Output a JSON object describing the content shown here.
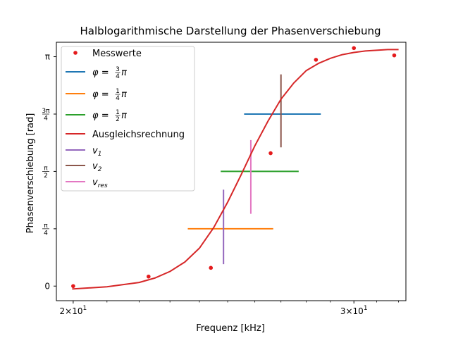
{
  "chart_data": {
    "type": "scatter",
    "title": "Halblogarithmische Darstellung der Phasenverschiebung",
    "xlabel": "Frequenz [kHz]",
    "ylabel": "Phasenverschiebung [rad]",
    "xscale": "log",
    "xlim": [
      19.52,
      32.34
    ],
    "ylim": [
      -0.2,
      3.34
    ],
    "grid": false,
    "legend_position": "upper left",
    "x_ticks": [
      {
        "value": 20,
        "base": "2×10",
        "exp": "1"
      },
      {
        "value": 30,
        "base": "3×10",
        "exp": "1"
      }
    ],
    "y_ticks": [
      {
        "value": 0,
        "text": "0"
      },
      {
        "value": 0.785,
        "num": "π",
        "den": "4"
      },
      {
        "value": 1.571,
        "num": "π",
        "den": "2"
      },
      {
        "value": 2.356,
        "num": "3π",
        "den": "4"
      },
      {
        "value": 3.142,
        "text": "π"
      }
    ],
    "series": [
      {
        "name": "Messwerte",
        "kind": "points",
        "color": "#e41a1c",
        "x": [
          20.0,
          22.3,
          24.4,
          26.6,
          28.4,
          30.0,
          31.8
        ],
        "y": [
          0.0,
          0.13,
          0.25,
          1.82,
          3.1,
          3.26,
          3.16
        ]
      },
      {
        "name": "Ausgleichsrechnung",
        "kind": "curve",
        "color": "#d62728",
        "x": [
          19.97,
          21.0,
          22.0,
          22.5,
          23.0,
          23.5,
          24.0,
          24.5,
          25.0,
          25.5,
          26.0,
          26.5,
          27.0,
          27.5,
          28.0,
          28.5,
          29.0,
          29.5,
          30.0,
          30.5,
          31.0,
          31.5,
          32.0
        ],
        "y": [
          -0.04,
          -0.01,
          0.05,
          0.11,
          0.2,
          0.33,
          0.52,
          0.8,
          1.15,
          1.53,
          1.92,
          2.26,
          2.56,
          2.78,
          2.95,
          3.05,
          3.12,
          3.17,
          3.2,
          3.22,
          3.23,
          3.24,
          3.24
        ]
      }
    ],
    "hlines": [
      {
        "name_base": "φ = ",
        "frac_num": "3",
        "frac_den": "4",
        "name_tail": "π",
        "color": "#1f77b4",
        "y": 2.356,
        "x_from": 25.6,
        "x_to": 28.6
      },
      {
        "name_base": "φ = ",
        "frac_num": "1",
        "frac_den": "4",
        "name_tail": "π",
        "color": "#ff7f0e",
        "y": 0.785,
        "x_from": 23.6,
        "x_to": 26.7
      },
      {
        "name_base": "φ = ",
        "frac_num": "1",
        "frac_den": "2",
        "name_tail": "π",
        "color": "#2ca02c",
        "y": 1.571,
        "x_from": 24.75,
        "x_to": 27.7
      }
    ],
    "vlines": [
      {
        "name_base": "v",
        "name_sub": "1",
        "color": "#9467bd",
        "x": 24.85,
        "y_from": 0.3,
        "y_to": 1.32
      },
      {
        "name_base": "v",
        "name_sub": "2",
        "color": "#8c564b",
        "x": 27.0,
        "y_from": 1.9,
        "y_to": 2.9
      },
      {
        "name_base": "v",
        "name_sub": "res",
        "color": "#e377c2",
        "x": 25.85,
        "y_from": 0.99,
        "y_to": 2.0
      }
    ]
  }
}
